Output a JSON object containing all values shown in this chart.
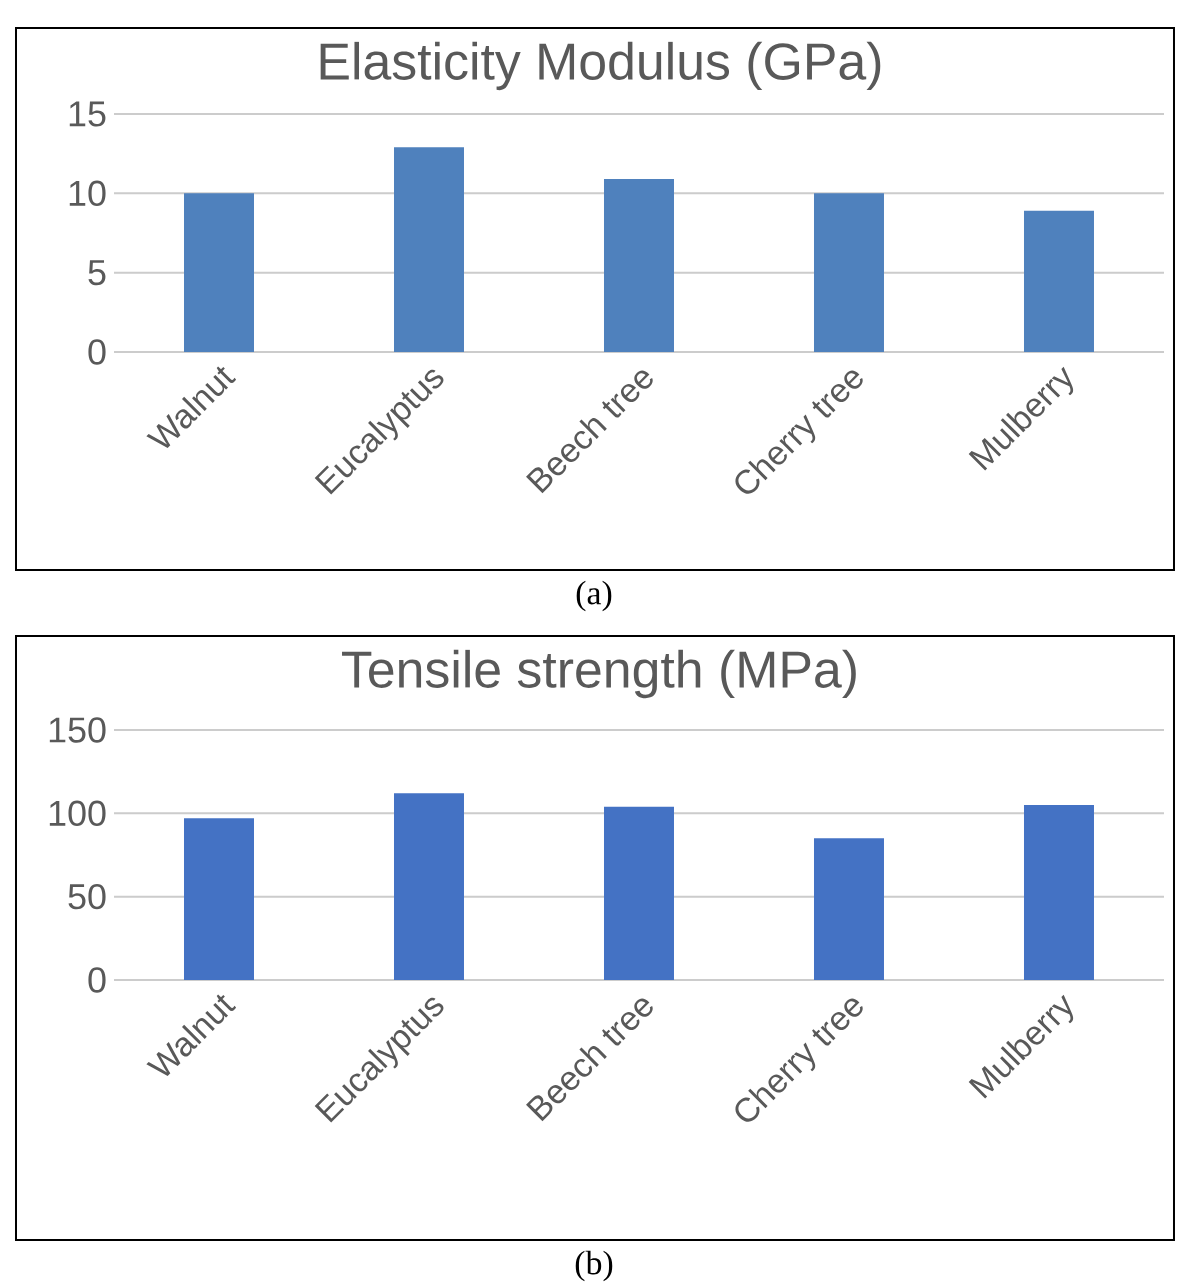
{
  "chart_data": [
    {
      "type": "bar",
      "title": "Elasticity Modulus (GPa)",
      "categories": [
        "Walnut",
        "Eucalyptus",
        "Beech tree",
        "Cherry tree",
        "Mulberry"
      ],
      "values": [
        10,
        12.9,
        10.9,
        10,
        8.9
      ],
      "color": "#4f81bd",
      "ylim": [
        0,
        15
      ],
      "yticks": [
        0,
        5,
        10,
        15
      ],
      "grid": "y",
      "annotations": [
        "(a)"
      ]
    },
    {
      "type": "bar",
      "title": "Tensile strength (MPa)",
      "categories": [
        "Walnut",
        "Eucalyptus",
        "Beech tree",
        "Cherry tree",
        "Mulberry"
      ],
      "values": [
        97,
        112,
        104,
        85,
        105
      ],
      "color": "#4472c4",
      "ylim": [
        0,
        150
      ],
      "yticks": [
        0,
        50,
        100,
        150
      ],
      "grid": "y",
      "annotations": [
        "(b)"
      ]
    }
  ]
}
